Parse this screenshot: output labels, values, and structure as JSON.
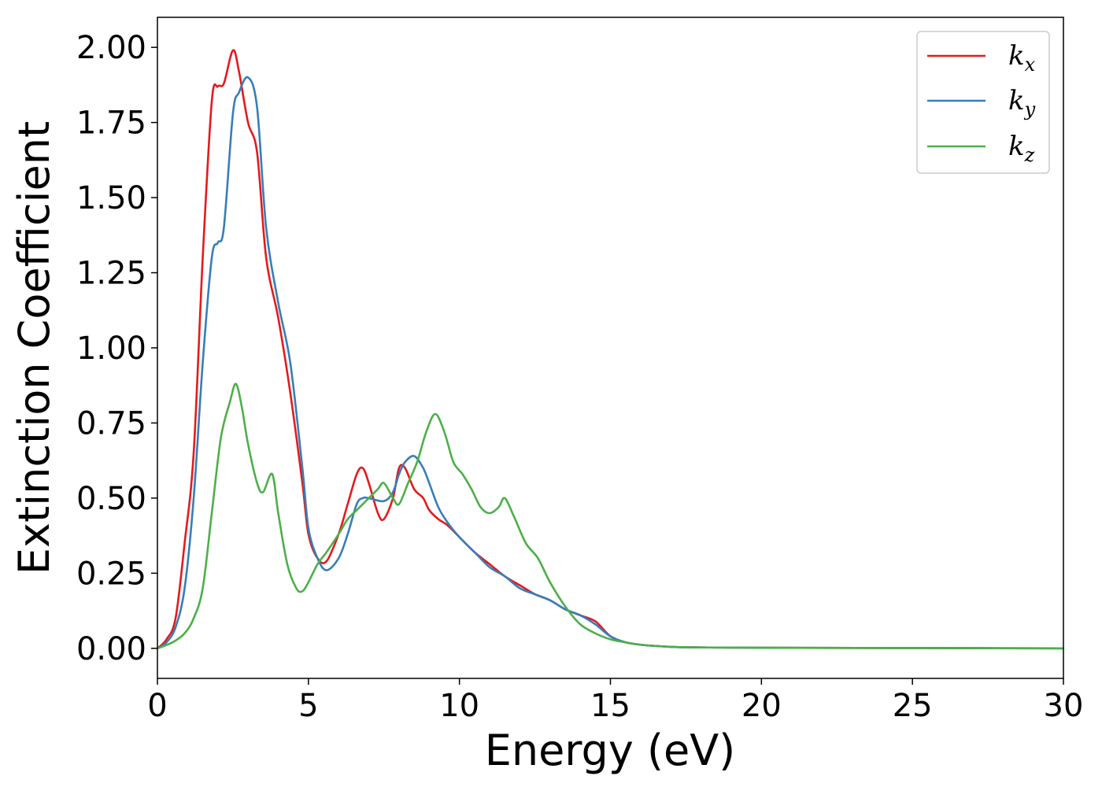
{
  "chart_data": {
    "type": "line",
    "xlabel": "Energy (eV)",
    "ylabel": "Extinction Coefficient",
    "xlim": [
      0,
      30
    ],
    "ylim": [
      -0.1,
      2.1
    ],
    "xticks": [
      0,
      5,
      10,
      15,
      20,
      25,
      30
    ],
    "xtick_labels": [
      "0",
      "5",
      "10",
      "15",
      "20",
      "25",
      "30"
    ],
    "yticks": [
      0.0,
      0.25,
      0.5,
      0.75,
      1.0,
      1.25,
      1.5,
      1.75,
      2.0
    ],
    "ytick_labels": [
      "0.00",
      "0.25",
      "0.50",
      "0.75",
      "1.00",
      "1.25",
      "1.50",
      "1.75",
      "2.00"
    ],
    "grid": false,
    "legend_position": "top-right",
    "series": [
      {
        "name": "kx",
        "label_main": "k",
        "label_sub": "x",
        "color": "#e41a1c",
        "x": [
          0,
          0.3,
          0.6,
          0.9,
          1.2,
          1.5,
          1.8,
          2.0,
          2.2,
          2.5,
          2.7,
          3.0,
          3.3,
          3.6,
          4.0,
          4.4,
          4.8,
          5.0,
          5.3,
          5.6,
          6.0,
          6.3,
          6.6,
          6.8,
          7.0,
          7.3,
          7.5,
          7.8,
          8.0,
          8.2,
          8.5,
          8.8,
          9.0,
          9.3,
          9.6,
          10.0,
          10.5,
          11.0,
          11.5,
          12.0,
          12.5,
          13.0,
          13.5,
          14.0,
          14.5,
          15.0,
          15.5,
          16.0,
          17.0,
          18.0,
          20.0,
          25.0,
          30.0
        ],
        "y": [
          0.0,
          0.03,
          0.1,
          0.35,
          0.65,
          1.3,
          1.82,
          1.87,
          1.88,
          1.99,
          1.92,
          1.75,
          1.65,
          1.3,
          1.1,
          0.85,
          0.55,
          0.38,
          0.3,
          0.29,
          0.38,
          0.48,
          0.58,
          0.6,
          0.55,
          0.45,
          0.43,
          0.5,
          0.6,
          0.6,
          0.53,
          0.5,
          0.46,
          0.43,
          0.41,
          0.37,
          0.32,
          0.28,
          0.24,
          0.21,
          0.18,
          0.16,
          0.13,
          0.11,
          0.09,
          0.04,
          0.02,
          0.012,
          0.005,
          0.003,
          0.002,
          0.001,
          0.0
        ]
      },
      {
        "name": "ky",
        "label_main": "k",
        "label_sub": "y",
        "color": "#377eb8",
        "x": [
          0,
          0.3,
          0.6,
          0.9,
          1.2,
          1.5,
          1.8,
          2.0,
          2.2,
          2.5,
          2.7,
          3.0,
          3.3,
          3.6,
          4.0,
          4.4,
          4.8,
          5.0,
          5.3,
          5.6,
          6.0,
          6.3,
          6.6,
          6.8,
          7.0,
          7.5,
          7.8,
          8.0,
          8.2,
          8.5,
          8.8,
          9.0,
          9.3,
          9.6,
          10.0,
          10.5,
          11.0,
          11.5,
          12.0,
          12.5,
          13.0,
          13.5,
          14.0,
          14.5,
          15.0,
          15.5,
          16.0,
          17.0,
          18.0,
          20.0,
          25.0,
          30.0
        ],
        "y": [
          0.0,
          0.02,
          0.07,
          0.2,
          0.5,
          0.95,
          1.3,
          1.35,
          1.4,
          1.78,
          1.85,
          1.9,
          1.8,
          1.4,
          1.15,
          0.95,
          0.6,
          0.4,
          0.3,
          0.26,
          0.3,
          0.38,
          0.48,
          0.5,
          0.5,
          0.49,
          0.52,
          0.58,
          0.62,
          0.64,
          0.6,
          0.55,
          0.47,
          0.42,
          0.37,
          0.32,
          0.27,
          0.24,
          0.2,
          0.18,
          0.16,
          0.13,
          0.11,
          0.08,
          0.04,
          0.02,
          0.012,
          0.005,
          0.003,
          0.002,
          0.001,
          0.0
        ]
      },
      {
        "name": "kz",
        "label_main": "k",
        "label_sub": "z",
        "color": "#4daf4a",
        "x": [
          0,
          0.5,
          0.9,
          1.2,
          1.5,
          1.8,
          2.1,
          2.4,
          2.6,
          2.8,
          3.0,
          3.3,
          3.5,
          3.8,
          4.0,
          4.3,
          4.6,
          4.8,
          5.0,
          5.3,
          5.6,
          6.0,
          6.3,
          6.6,
          7.0,
          7.3,
          7.5,
          7.8,
          8.0,
          8.3,
          8.6,
          8.9,
          9.2,
          9.5,
          9.8,
          10.1,
          10.4,
          10.7,
          11.0,
          11.3,
          11.5,
          11.8,
          12.2,
          12.6,
          13.0,
          13.5,
          14.0,
          14.5,
          15.0,
          15.5,
          16.0,
          17.0,
          18.0,
          20.0,
          25.0,
          30.0
        ],
        "y": [
          0.0,
          0.02,
          0.05,
          0.1,
          0.2,
          0.45,
          0.7,
          0.82,
          0.88,
          0.8,
          0.68,
          0.55,
          0.52,
          0.58,
          0.45,
          0.28,
          0.2,
          0.19,
          0.22,
          0.28,
          0.32,
          0.38,
          0.43,
          0.46,
          0.5,
          0.53,
          0.55,
          0.5,
          0.48,
          0.55,
          0.62,
          0.72,
          0.78,
          0.72,
          0.62,
          0.58,
          0.53,
          0.47,
          0.45,
          0.47,
          0.5,
          0.44,
          0.35,
          0.3,
          0.22,
          0.14,
          0.08,
          0.05,
          0.03,
          0.02,
          0.012,
          0.005,
          0.003,
          0.002,
          0.001,
          0.0
        ]
      }
    ]
  }
}
